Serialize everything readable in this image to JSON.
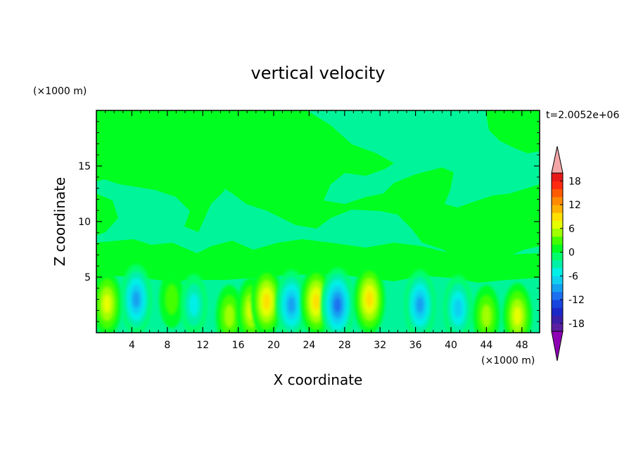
{
  "chart_data": {
    "type": "heatmap",
    "title": "vertical velocity",
    "xlabel": "X coordinate",
    "ylabel": "Z coordinate",
    "x_unit": "(×1000 m)",
    "y_unit": "(×1000 m)",
    "time_label": "t=2.0052e+06",
    "xlim": [
      0,
      50
    ],
    "ylim": [
      0,
      20
    ],
    "x_ticks": [
      4,
      8,
      12,
      16,
      20,
      24,
      28,
      32,
      36,
      40,
      44,
      48
    ],
    "y_ticks": [
      5,
      10,
      15
    ],
    "colorbar": {
      "min": -20,
      "max": 20,
      "step": 2,
      "tick_labels": [
        18,
        12,
        6,
        0,
        -6,
        -12,
        -18
      ],
      "colors": [
        "#5a1fa0",
        "#3a1fa8",
        "#1a28c8",
        "#1845e0",
        "#1c6ff0",
        "#14a0f0",
        "#10d0f0",
        "#00f0e8",
        "#00f0a8",
        "#00ff6a",
        "#00ff20",
        "#44ff00",
        "#a0ff00",
        "#e6ff00",
        "#ffe000",
        "#ffb000",
        "#ff8a00",
        "#ff5a00",
        "#ff2a10",
        "#e81818"
      ],
      "over_color": "#f4a6a6",
      "under_color": "#8e00b4"
    },
    "field": {
      "background_level": 0,
      "cells": [
        {
          "x": 1.2,
          "z": 2.6,
          "level": 6
        },
        {
          "x": 4.5,
          "z": 3.0,
          "level": -8
        },
        {
          "x": 8.5,
          "z": 3.0,
          "level": 2
        },
        {
          "x": 11.0,
          "z": 2.5,
          "level": -4
        },
        {
          "x": 15.0,
          "z": 1.5,
          "level": 4
        },
        {
          "x": 17.5,
          "z": 2.0,
          "level": 6
        },
        {
          "x": 19.2,
          "z": 2.8,
          "level": 8
        },
        {
          "x": 22.0,
          "z": 2.5,
          "level": -8
        },
        {
          "x": 24.8,
          "z": 2.8,
          "level": 8
        },
        {
          "x": 27.2,
          "z": 2.5,
          "level": -10
        },
        {
          "x": 30.8,
          "z": 3.0,
          "level": 8
        },
        {
          "x": 36.5,
          "z": 2.5,
          "level": -8
        },
        {
          "x": 40.8,
          "z": 2.2,
          "level": -6
        },
        {
          "x": 44.0,
          "z": 1.5,
          "level": 4
        },
        {
          "x": 47.5,
          "z": 1.5,
          "level": 6
        }
      ]
    }
  }
}
